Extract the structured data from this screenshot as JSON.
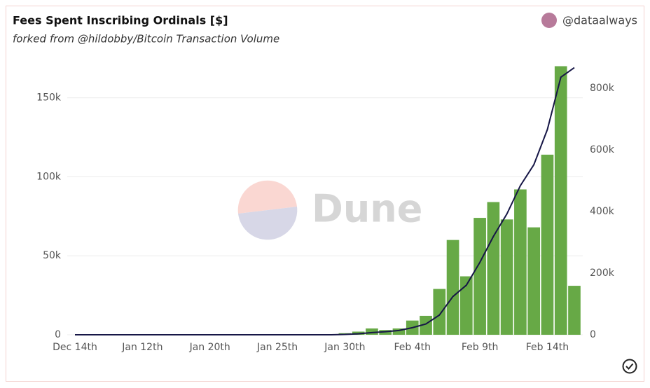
{
  "chart_data": {
    "type": "bar-line",
    "title": "Fees Spent Inscribing Ordinals [$]",
    "subtitle": "forked from @hildobby/Bitcoin Transaction Volume",
    "author": "@dataalways",
    "watermark": "Dune",
    "categories": [
      "Dec 14th",
      null,
      null,
      null,
      null,
      "Jan 12th",
      null,
      null,
      null,
      null,
      "Jan 20th",
      null,
      null,
      null,
      null,
      "Jan 25th",
      null,
      null,
      null,
      null,
      "Jan 30th",
      null,
      null,
      null,
      null,
      "Feb 4th",
      null,
      null,
      null,
      null,
      "Feb 9th",
      null,
      null,
      null,
      null,
      "Feb 14th",
      null,
      null
    ],
    "series": [
      {
        "type": "bar",
        "color": "#67a946",
        "values": [
          0,
          0,
          0,
          0,
          0,
          0,
          0,
          0,
          0,
          0,
          0,
          0,
          0,
          0,
          0,
          0,
          0,
          0,
          0,
          0,
          1000,
          2000,
          4000,
          3000,
          4000,
          9000,
          12000,
          29000,
          60000,
          37000,
          74000,
          84000,
          73000,
          92000,
          68000,
          114000,
          170000,
          31000
        ]
      },
      {
        "type": "line",
        "axis": "y2",
        "color": "#161646",
        "values": [
          0,
          0,
          0,
          0,
          0,
          0,
          0,
          0,
          0,
          0,
          0,
          0,
          0,
          0,
          0,
          0,
          0,
          0,
          0,
          0,
          1000,
          3000,
          7000,
          10000,
          14000,
          23000,
          35000,
          64000,
          124000,
          161000,
          235000,
          319000,
          392000,
          484000,
          552000,
          666000,
          836000,
          867000
        ]
      }
    ],
    "ylim": [
      0,
      172000
    ],
    "yticks": [
      {
        "value": 0,
        "label": "0"
      },
      {
        "value": 50000,
        "label": "50k"
      },
      {
        "value": 100000,
        "label": "100k"
      },
      {
        "value": 150000,
        "label": "150k"
      }
    ],
    "y2lim": [
      0,
      882000
    ],
    "y2ticks": [
      {
        "value": 0,
        "label": "0"
      },
      {
        "value": 200000,
        "label": "200k"
      },
      {
        "value": 400000,
        "label": "400k"
      },
      {
        "value": 600000,
        "label": "600k"
      },
      {
        "value": 800000,
        "label": "800k"
      }
    ],
    "grid": true
  }
}
